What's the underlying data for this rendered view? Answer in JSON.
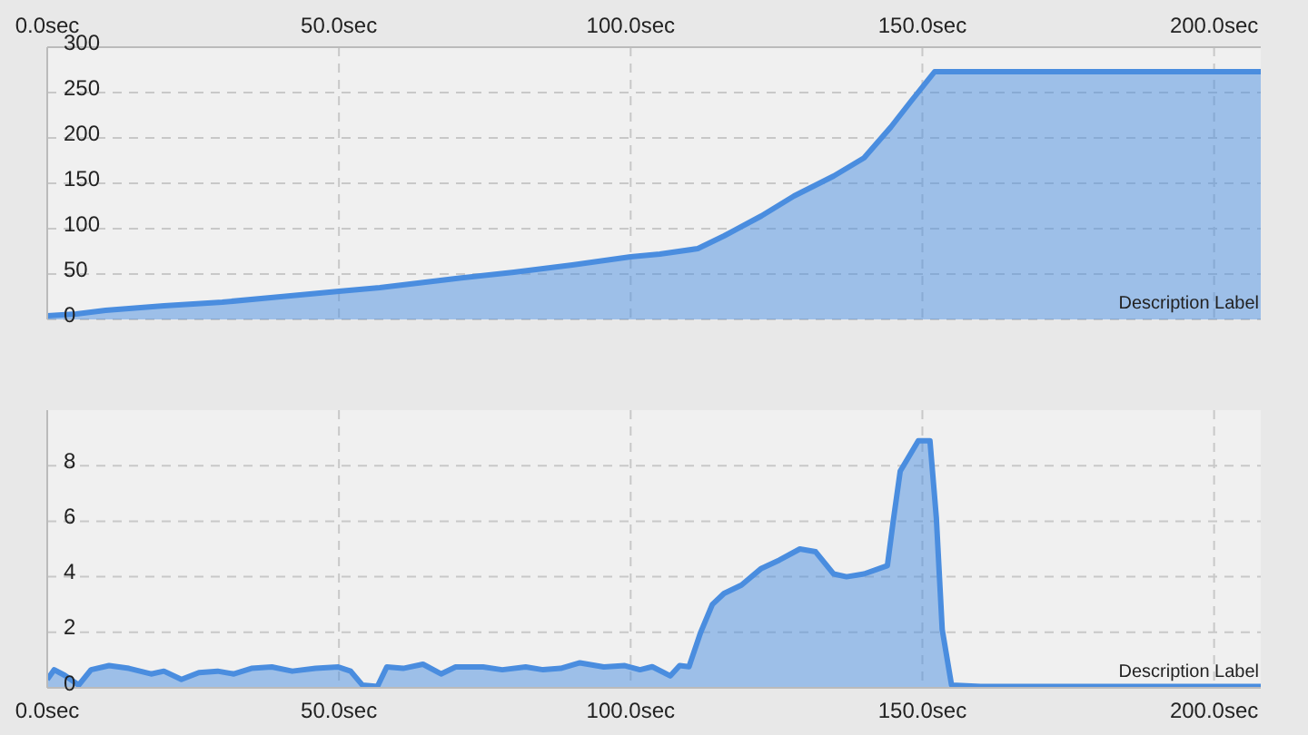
{
  "chart_data": [
    {
      "type": "area",
      "color": "#4a8ddf",
      "grid": true,
      "annotations": [
        "Description Label"
      ],
      "x": [
        0,
        5,
        10,
        20,
        30,
        40,
        50,
        57,
        70,
        80,
        90,
        100,
        105,
        111.5,
        116,
        122.4,
        128,
        134.8,
        140,
        144.6,
        148,
        152.1,
        208
      ],
      "values": [
        4,
        6,
        10,
        15,
        19,
        25,
        31,
        35,
        45,
        52,
        60,
        69,
        72,
        78,
        92,
        114,
        136,
        158,
        178,
        212,
        240,
        273,
        273
      ],
      "xlim": [
        0,
        208
      ],
      "xticks": [
        {
          "value": 0,
          "label": "0.0sec"
        },
        {
          "value": 50,
          "label": "50.0sec"
        },
        {
          "value": 100,
          "label": "100.0sec"
        },
        {
          "value": 150,
          "label": "150.0sec"
        },
        {
          "value": 200,
          "label": "200.0sec"
        }
      ],
      "ylim": [
        0,
        300
      ],
      "yticks": [
        0,
        50,
        100,
        150,
        200,
        250,
        300
      ]
    },
    {
      "type": "area",
      "color": "#4a8ddf",
      "grid": true,
      "annotations": [
        "Description Label"
      ],
      "x": [
        0,
        1.2,
        3,
        5.4,
        7.5,
        10.6,
        14,
        17.8,
        20,
        23,
        26,
        29.2,
        32,
        35,
        38.5,
        42,
        46,
        49.9,
        52,
        54,
        56.6,
        58.2,
        61,
        64.4,
        67.5,
        70,
        74.7,
        78,
        82,
        85,
        88,
        91.3,
        95.4,
        99,
        101.6,
        103.7,
        106.8,
        108.4,
        110,
        112,
        114,
        116,
        119,
        122.4,
        125.5,
        129,
        131.7,
        134.8,
        137,
        140,
        144,
        145,
        146.2,
        149.3,
        151.3,
        152.4,
        153.4,
        155,
        160,
        208
      ],
      "values": [
        0.3,
        0.65,
        0.45,
        0.1,
        0.65,
        0.8,
        0.7,
        0.5,
        0.6,
        0.3,
        0.55,
        0.6,
        0.5,
        0.7,
        0.75,
        0.6,
        0.7,
        0.75,
        0.6,
        0.1,
        0.05,
        0.75,
        0.7,
        0.85,
        0.5,
        0.75,
        0.75,
        0.65,
        0.75,
        0.65,
        0.7,
        0.9,
        0.75,
        0.8,
        0.65,
        0.76,
        0.43,
        0.8,
        0.76,
        2.0,
        3.0,
        3.4,
        3.7,
        4.3,
        4.6,
        5.0,
        4.9,
        4.1,
        4.0,
        4.1,
        4.4,
        6.0,
        7.8,
        8.9,
        8.9,
        6.1,
        2.1,
        0.1,
        0.05,
        0.05
      ],
      "xlim": [
        0,
        208
      ],
      "xticks": [
        {
          "value": 0,
          "label": "0.0sec"
        },
        {
          "value": 50,
          "label": "50.0sec"
        },
        {
          "value": 100,
          "label": "100.0sec"
        },
        {
          "value": 150,
          "label": "150.0sec"
        },
        {
          "value": 200,
          "label": "200.0sec"
        }
      ],
      "ylim": [
        0,
        10
      ],
      "yticks": [
        0,
        2,
        4,
        6,
        8
      ]
    }
  ]
}
